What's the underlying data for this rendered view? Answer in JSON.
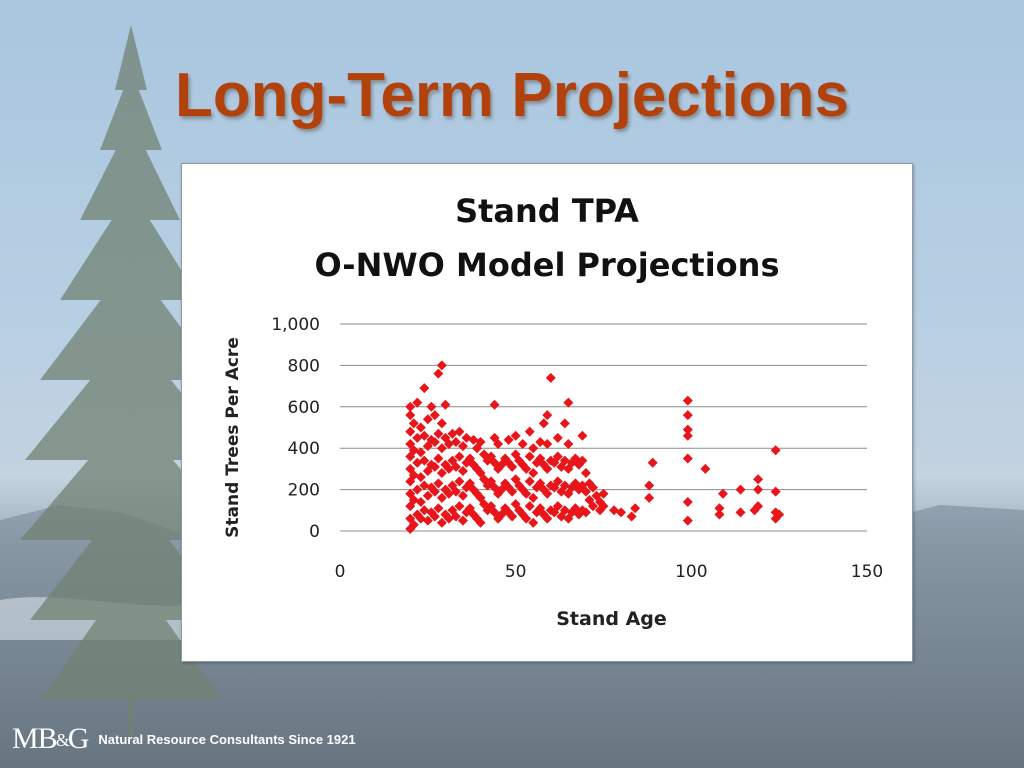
{
  "slide": {
    "title": "Long-Term Projections",
    "footer": {
      "logo_left": "MB",
      "logo_amp": "&",
      "logo_right": "G",
      "tagline": "Natural Resource Consultants Since 1921"
    },
    "colors": {
      "title": "#b1420e",
      "sky": "#b7cfe3",
      "tree": "#6f7f72"
    }
  },
  "chart_data": {
    "type": "scatter",
    "title": "Stand TPA",
    "subtitle": "O-NWO Model Projections",
    "xlabel": "Stand Age",
    "ylabel": "Stand Trees Per Acre",
    "xlim": [
      0,
      150
    ],
    "ylim": [
      0,
      1000
    ],
    "x_ticks": [
      0,
      50,
      100,
      150
    ],
    "y_ticks": [
      0,
      200,
      400,
      600,
      800,
      1000
    ],
    "x_tick_labels": [
      "0",
      "50",
      "100",
      "150"
    ],
    "y_tick_labels": [
      "0",
      "200",
      "400",
      "600",
      "800",
      "1,000"
    ],
    "grid": "horizontal",
    "legend": "none",
    "series": [
      {
        "marker": "diamond",
        "color": "#e8161b",
        "points": [
          [
            20,
            10
          ],
          [
            20,
            60
          ],
          [
            20,
            120
          ],
          [
            20,
            180
          ],
          [
            20,
            240
          ],
          [
            20,
            300
          ],
          [
            20,
            360
          ],
          [
            20,
            420
          ],
          [
            20,
            480
          ],
          [
            20,
            560
          ],
          [
            20,
            600
          ],
          [
            21,
            30
          ],
          [
            21,
            150
          ],
          [
            21,
            270
          ],
          [
            21,
            390
          ],
          [
            21,
            520
          ],
          [
            22,
            80
          ],
          [
            22,
            200
          ],
          [
            22,
            330
          ],
          [
            22,
            450
          ],
          [
            22,
            620
          ],
          [
            23,
            60
          ],
          [
            23,
            140
          ],
          [
            23,
            260
          ],
          [
            23,
            380
          ],
          [
            23,
            500
          ],
          [
            24,
            100
          ],
          [
            24,
            220
          ],
          [
            24,
            340
          ],
          [
            24,
            460
          ],
          [
            24,
            690
          ],
          [
            25,
            50
          ],
          [
            25,
            170
          ],
          [
            25,
            290
          ],
          [
            25,
            410
          ],
          [
            25,
            540
          ],
          [
            26,
            90
          ],
          [
            26,
            210
          ],
          [
            26,
            320
          ],
          [
            26,
            440
          ],
          [
            26,
            600
          ],
          [
            27,
            70
          ],
          [
            27,
            190
          ],
          [
            27,
            310
          ],
          [
            27,
            430
          ],
          [
            27,
            560
          ],
          [
            28,
            110
          ],
          [
            28,
            230
          ],
          [
            28,
            350
          ],
          [
            28,
            470
          ],
          [
            28,
            760
          ],
          [
            29,
            40
          ],
          [
            29,
            160
          ],
          [
            29,
            280
          ],
          [
            29,
            400
          ],
          [
            29,
            520
          ],
          [
            29,
            800
          ],
          [
            30,
            80
          ],
          [
            30,
            200
          ],
          [
            30,
            320
          ],
          [
            30,
            450
          ],
          [
            30,
            610
          ],
          [
            31,
            60
          ],
          [
            31,
            180
          ],
          [
            31,
            300
          ],
          [
            31,
            420
          ],
          [
            32,
            100
          ],
          [
            32,
            220
          ],
          [
            32,
            340
          ],
          [
            32,
            470
          ],
          [
            33,
            70
          ],
          [
            33,
            190
          ],
          [
            33,
            310
          ],
          [
            33,
            430
          ],
          [
            34,
            120
          ],
          [
            34,
            240
          ],
          [
            34,
            360
          ],
          [
            34,
            480
          ],
          [
            35,
            50
          ],
          [
            35,
            170
          ],
          [
            35,
            290
          ],
          [
            35,
            410
          ],
          [
            36,
            90
          ],
          [
            36,
            210
          ],
          [
            36,
            330
          ],
          [
            36,
            450
          ],
          [
            37,
            110
          ],
          [
            37,
            230
          ],
          [
            37,
            350
          ],
          [
            38,
            80
          ],
          [
            38,
            200
          ],
          [
            38,
            320
          ],
          [
            38,
            440
          ],
          [
            39,
            60
          ],
          [
            39,
            180
          ],
          [
            39,
            300
          ],
          [
            39,
            400
          ],
          [
            40,
            40
          ],
          [
            40,
            160
          ],
          [
            40,
            280
          ],
          [
            40,
            430
          ],
          [
            41,
            130
          ],
          [
            41,
            250
          ],
          [
            41,
            370
          ],
          [
            42,
            100
          ],
          [
            42,
            220
          ],
          [
            42,
            340
          ],
          [
            43,
            120
          ],
          [
            43,
            240
          ],
          [
            43,
            360
          ],
          [
            44,
            90
          ],
          [
            44,
            210
          ],
          [
            44,
            330
          ],
          [
            44,
            450
          ],
          [
            44,
            610
          ],
          [
            45,
            60
          ],
          [
            45,
            180
          ],
          [
            45,
            300
          ],
          [
            45,
            420
          ],
          [
            46,
            80
          ],
          [
            46,
            200
          ],
          [
            46,
            320
          ],
          [
            47,
            110
          ],
          [
            47,
            230
          ],
          [
            47,
            350
          ],
          [
            48,
            90
          ],
          [
            48,
            210
          ],
          [
            48,
            330
          ],
          [
            48,
            440
          ],
          [
            49,
            70
          ],
          [
            49,
            190
          ],
          [
            49,
            310
          ],
          [
            50,
            130
          ],
          [
            50,
            250
          ],
          [
            50,
            370
          ],
          [
            50,
            460
          ],
          [
            51,
            100
          ],
          [
            51,
            220
          ],
          [
            51,
            340
          ],
          [
            52,
            80
          ],
          [
            52,
            200
          ],
          [
            52,
            320
          ],
          [
            52,
            420
          ],
          [
            53,
            60
          ],
          [
            53,
            180
          ],
          [
            53,
            300
          ],
          [
            54,
            120
          ],
          [
            54,
            240
          ],
          [
            54,
            360
          ],
          [
            54,
            480
          ],
          [
            55,
            40
          ],
          [
            55,
            160
          ],
          [
            55,
            280
          ],
          [
            55,
            400
          ],
          [
            56,
            90
          ],
          [
            56,
            210
          ],
          [
            56,
            330
          ],
          [
            57,
            110
          ],
          [
            57,
            230
          ],
          [
            57,
            350
          ],
          [
            57,
            430
          ],
          [
            58,
            80
          ],
          [
            58,
            200
          ],
          [
            58,
            320
          ],
          [
            58,
            520
          ],
          [
            59,
            60
          ],
          [
            59,
            180
          ],
          [
            59,
            300
          ],
          [
            59,
            420
          ],
          [
            59,
            560
          ],
          [
            60,
            100
          ],
          [
            60,
            220
          ],
          [
            60,
            340
          ],
          [
            60,
            740
          ],
          [
            61,
            90
          ],
          [
            61,
            210
          ],
          [
            61,
            330
          ],
          [
            62,
            120
          ],
          [
            62,
            240
          ],
          [
            62,
            360
          ],
          [
            62,
            450
          ],
          [
            63,
            70
          ],
          [
            63,
            190
          ],
          [
            63,
            310
          ],
          [
            64,
            100
          ],
          [
            64,
            220
          ],
          [
            64,
            340
          ],
          [
            64,
            520
          ],
          [
            65,
            60
          ],
          [
            65,
            180
          ],
          [
            65,
            300
          ],
          [
            65,
            420
          ],
          [
            65,
            620
          ],
          [
            66,
            90
          ],
          [
            66,
            210
          ],
          [
            66,
            330
          ],
          [
            67,
            110
          ],
          [
            67,
            230
          ],
          [
            67,
            350
          ],
          [
            68,
            80
          ],
          [
            68,
            200
          ],
          [
            68,
            320
          ],
          [
            69,
            100
          ],
          [
            69,
            220
          ],
          [
            69,
            340
          ],
          [
            69,
            460
          ],
          [
            70,
            90
          ],
          [
            70,
            190
          ],
          [
            70,
            280
          ],
          [
            71,
            150
          ],
          [
            71,
            230
          ],
          [
            72,
            120
          ],
          [
            72,
            210
          ],
          [
            73,
            170
          ],
          [
            74,
            100
          ],
          [
            74,
            140
          ],
          [
            75,
            120
          ],
          [
            75,
            180
          ],
          [
            78,
            100
          ],
          [
            80,
            90
          ],
          [
            83,
            70
          ],
          [
            84,
            110
          ],
          [
            88,
            160
          ],
          [
            88,
            220
          ],
          [
            89,
            330
          ],
          [
            99,
            50
          ],
          [
            99,
            140
          ],
          [
            99,
            350
          ],
          [
            99,
            460
          ],
          [
            99,
            490
          ],
          [
            99,
            560
          ],
          [
            99,
            630
          ],
          [
            104,
            300
          ],
          [
            108,
            80
          ],
          [
            108,
            110
          ],
          [
            109,
            180
          ],
          [
            114,
            90
          ],
          [
            114,
            200
          ],
          [
            118,
            100
          ],
          [
            119,
            120
          ],
          [
            119,
            200
          ],
          [
            119,
            250
          ],
          [
            124,
            60
          ],
          [
            124,
            90
          ],
          [
            124,
            190
          ],
          [
            124,
            390
          ],
          [
            125,
            80
          ]
        ]
      }
    ]
  }
}
